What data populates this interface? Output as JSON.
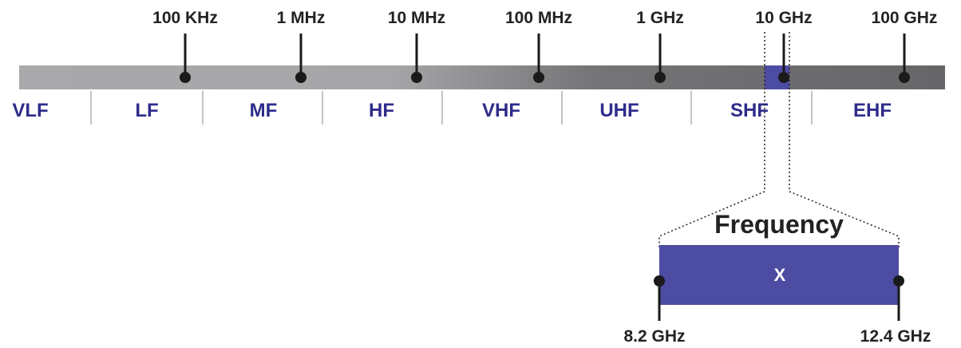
{
  "spectrum": {
    "ticks": [
      "100 KHz",
      "1 MHz",
      "10 MHz",
      "100 MHz",
      "1 GHz",
      "10 GHz",
      "100 GHz"
    ],
    "bands": [
      "VLF",
      "LF",
      "MF",
      "HF",
      "VHF",
      "UHF",
      "SHF",
      "EHF"
    ]
  },
  "zoom": {
    "title": "Frequency",
    "band_label": "X",
    "start_label": "8.2 GHz",
    "end_label": "12.4 GHz"
  },
  "colors": {
    "bar_light": "#a9a9ab",
    "bar_dark": "#6a6a6c",
    "highlight": "#4d4ca3",
    "band_text": "#2e2c8a",
    "tick_text": "#222222",
    "divider": "#c4c4c4"
  }
}
